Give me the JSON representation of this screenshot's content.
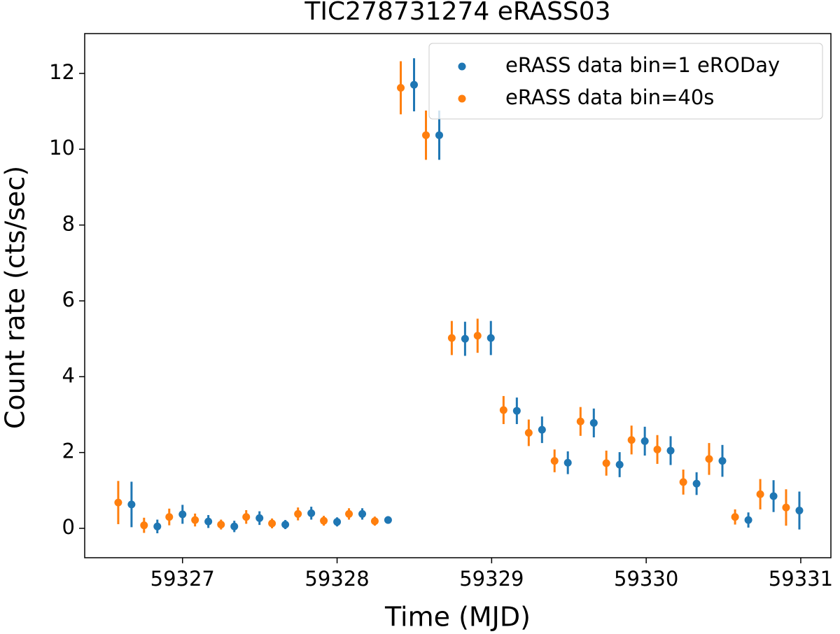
{
  "chart_data": {
    "type": "errorbar",
    "title": "TIC278731274 eRASS03",
    "x_label": "Time (MJD)",
    "y_label": "Count rate (cts/sec)",
    "xlim": [
      59326.367,
      59331.195
    ],
    "ylim": [
      -0.775,
      13.05
    ],
    "xticks": [
      59327,
      59328,
      59329,
      59330,
      59331
    ],
    "yticks": [
      0,
      2,
      4,
      6,
      8,
      10,
      12
    ],
    "legend": "upper right",
    "grid": false,
    "series": [
      {
        "name": "eRASS data bin=1 eRODay",
        "color": "#1f77b4",
        "x": [
          59326.67,
          59326.837,
          59327.0,
          59327.167,
          59327.335,
          59327.498,
          59327.665,
          59327.833,
          59328.0,
          59328.163,
          59328.33,
          59328.498,
          59328.661,
          59328.828,
          59328.995,
          59329.163,
          59329.326,
          59329.493,
          59329.661,
          59329.828,
          59329.991,
          59330.158,
          59330.326,
          59330.493,
          59330.661,
          59330.824,
          59330.991
        ],
        "values": [
          0.63,
          0.05,
          0.37,
          0.18,
          0.05,
          0.27,
          0.1,
          0.4,
          0.17,
          0.38,
          0.22,
          11.7,
          10.37,
          5.0,
          5.02,
          3.1,
          2.6,
          1.73,
          2.78,
          1.68,
          2.3,
          2.05,
          1.18,
          1.78,
          0.22,
          0.85,
          0.47
        ],
        "errors": [
          0.6,
          0.18,
          0.25,
          0.17,
          0.15,
          0.18,
          0.12,
          0.17,
          0.12,
          0.15,
          0.1,
          0.7,
          0.65,
          0.45,
          0.45,
          0.35,
          0.35,
          0.3,
          0.38,
          0.33,
          0.38,
          0.38,
          0.3,
          0.42,
          0.2,
          0.42,
          0.5
        ]
      },
      {
        "name": "eRASS data bin=40s",
        "color": "#ff7f0e",
        "x": [
          59326.584,
          59326.751,
          59326.914,
          59327.081,
          59327.249,
          59327.412,
          59327.579,
          59327.747,
          59327.914,
          59328.077,
          59328.244,
          59328.412,
          59328.575,
          59328.742,
          59328.909,
          59329.077,
          59329.24,
          59329.407,
          59329.575,
          59329.742,
          59329.905,
          59330.072,
          59330.24,
          59330.407,
          59330.575,
          59330.738,
          59330.905
        ],
        "values": [
          0.68,
          0.08,
          0.3,
          0.22,
          0.1,
          0.3,
          0.13,
          0.38,
          0.2,
          0.38,
          0.19,
          11.62,
          10.37,
          5.02,
          5.08,
          3.12,
          2.52,
          1.78,
          2.82,
          1.72,
          2.33,
          2.08,
          1.22,
          1.83,
          0.3,
          0.9,
          0.55
        ],
        "errors": [
          0.57,
          0.2,
          0.22,
          0.17,
          0.13,
          0.18,
          0.13,
          0.17,
          0.13,
          0.15,
          0.12,
          0.7,
          0.65,
          0.45,
          0.45,
          0.37,
          0.35,
          0.3,
          0.38,
          0.33,
          0.38,
          0.38,
          0.33,
          0.42,
          0.2,
          0.4,
          0.48
        ]
      }
    ]
  }
}
